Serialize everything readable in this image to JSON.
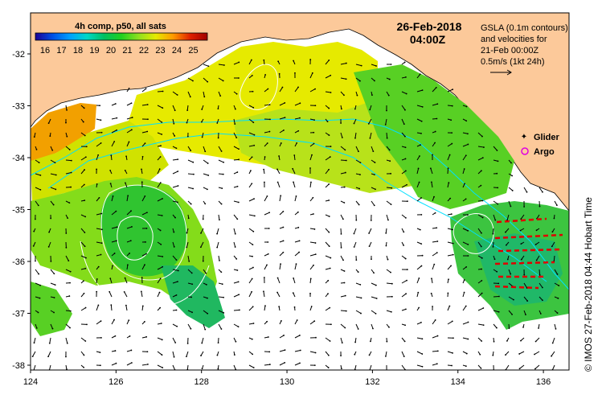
{
  "map": {
    "date_line1": "26-Feb-2018",
    "date_line2": "04:00Z",
    "colorbar": {
      "title": "4h comp, p50, all sats",
      "labels": [
        "16",
        "17",
        "18",
        "19",
        "20",
        "21",
        "22",
        "23",
        "24",
        "25"
      ],
      "gradient_colors": [
        "#1c0096",
        "#0050e6",
        "#00a0ff",
        "#00d8c8",
        "#00c060",
        "#20d020",
        "#8fe020",
        "#e6ea00",
        "#ff9a00",
        "#e02000",
        "#a00000"
      ]
    },
    "gsla_note": [
      "GSLA (0.1m contours)",
      "and velocities for",
      "21-Feb 00:00Z",
      "0.5m/s (1kt 24h)"
    ],
    "legend": {
      "glider_label": "Glider",
      "argo_label": "Argo",
      "glider_color": "#e000e0",
      "argo_color": "#e000e0"
    },
    "credit": "© IMOS 27-Feb-2018 04:44 Hobart Time",
    "lon_ticks": [
      "124",
      "126",
      "128",
      "130",
      "132",
      "134",
      "136"
    ],
    "lat_ticks": [
      "-32",
      "-33",
      "-34",
      "-35",
      "-36",
      "-37",
      "-38"
    ],
    "colors": {
      "land": "#fcc99a",
      "coast_line": "#000000",
      "contour": "#ffffff",
      "isobath": "#00e0ff",
      "glider_track": "#e00000"
    }
  }
}
